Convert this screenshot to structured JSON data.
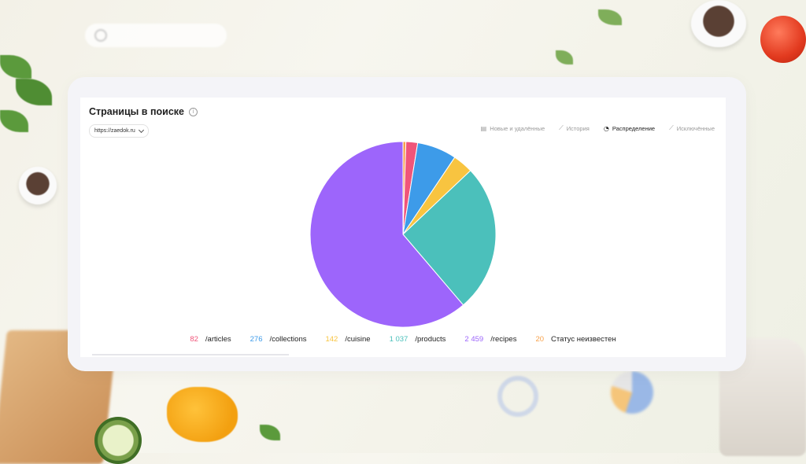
{
  "page": {
    "title": "Страницы в поиске",
    "site_selector": "https://zaedok.ru"
  },
  "tabs": [
    {
      "label": "Новые и удалённые",
      "icon": "table-icon",
      "active": false
    },
    {
      "label": "История",
      "icon": "line-chart-icon",
      "active": false
    },
    {
      "label": "Распределение",
      "icon": "pie-chart-icon",
      "active": true
    },
    {
      "label": "Исключённые",
      "icon": "line-chart-icon",
      "active": false
    }
  ],
  "chart_data": {
    "type": "pie",
    "categories": [
      "/articles",
      "/collections",
      "/cuisine",
      "/products",
      "/recipes",
      "Статус неизвестен"
    ],
    "values": [
      82,
      276,
      142,
      1037,
      2459,
      20
    ],
    "value_labels": [
      "82",
      "276",
      "142",
      "1 037",
      "2 459",
      "20"
    ],
    "colors": [
      "#f0557a",
      "#3d9be9",
      "#f8c440",
      "#4bc0bb",
      "#9d65fb",
      "#f7a14a"
    ],
    "start_slice_index": 5,
    "legend": "bottom"
  }
}
